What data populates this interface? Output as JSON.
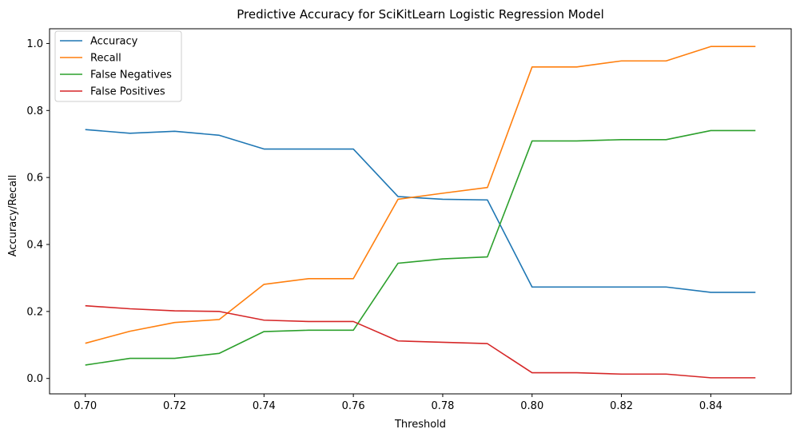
{
  "chart_data": {
    "type": "line",
    "title": "Predictive Accuracy for SciKitLearn Logistic Regression Model",
    "xlabel": "Threshold",
    "ylabel": "Accuracy/Recall",
    "xlim": [
      0.692,
      0.858
    ],
    "ylim": [
      -0.046,
      1.044
    ],
    "xticks": [
      "0.70",
      "0.72",
      "0.74",
      "0.76",
      "0.78",
      "0.80",
      "0.82",
      "0.84"
    ],
    "yticks": [
      "0.0",
      "0.2",
      "0.4",
      "0.6",
      "0.8",
      "1.0"
    ],
    "grid": false,
    "legend_position": "top-left",
    "x": [
      0.7,
      0.71,
      0.72,
      0.73,
      0.74,
      0.75,
      0.76,
      0.77,
      0.78,
      0.79,
      0.8,
      0.81,
      0.82,
      0.83,
      0.84,
      0.85
    ],
    "series": [
      {
        "name": "Accuracy",
        "color": "#1f77b4",
        "values": [
          0.743,
          0.732,
          0.738,
          0.726,
          0.685,
          0.685,
          0.685,
          0.543,
          0.535,
          0.533,
          0.273,
          0.273,
          0.273,
          0.273,
          0.257,
          0.257
        ]
      },
      {
        "name": "Recall",
        "color": "#ff7f0e",
        "values": [
          0.105,
          0.141,
          0.167,
          0.176,
          0.281,
          0.298,
          0.298,
          0.535,
          0.553,
          0.57,
          0.93,
          0.93,
          0.948,
          0.948,
          0.991,
          0.991
        ]
      },
      {
        "name": "False Negatives",
        "color": "#2ca02c",
        "values": [
          0.04,
          0.06,
          0.06,
          0.075,
          0.14,
          0.144,
          0.144,
          0.344,
          0.357,
          0.363,
          0.709,
          0.709,
          0.713,
          0.713,
          0.74,
          0.74
        ]
      },
      {
        "name": "False Positives",
        "color": "#d62728",
        "values": [
          0.217,
          0.208,
          0.202,
          0.2,
          0.174,
          0.17,
          0.17,
          0.112,
          0.108,
          0.104,
          0.017,
          0.017,
          0.013,
          0.013,
          0.002,
          0.002
        ]
      }
    ]
  }
}
